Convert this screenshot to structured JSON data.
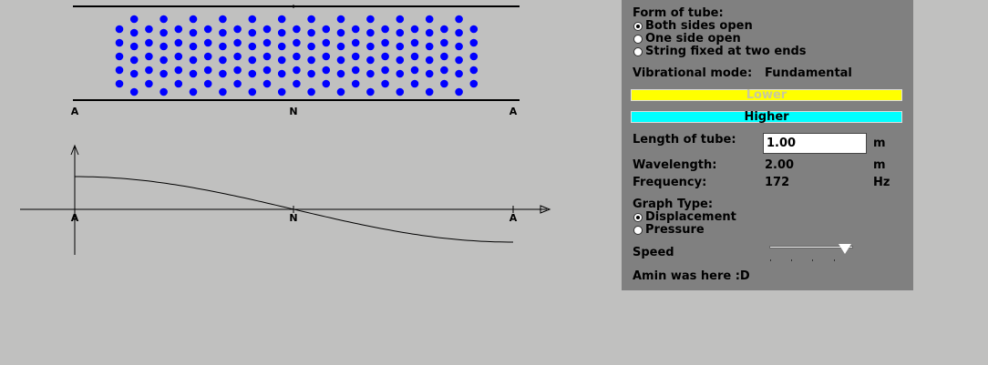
{
  "tube": {
    "node_labels": [
      "A",
      "N",
      "A"
    ],
    "particle_color": "#0000ff"
  },
  "graph": {
    "node_labels": [
      "A",
      "N",
      "A"
    ]
  },
  "panel": {
    "form_title": "Form of tube:",
    "form_options": [
      {
        "label": "Both sides open",
        "selected": true
      },
      {
        "label": "One side open",
        "selected": false
      },
      {
        "label": "String fixed at two ends",
        "selected": false
      }
    ],
    "mode_label": "Vibrational mode:",
    "mode_value": "Fundamental",
    "lower_button": "Lower",
    "lower_color": "#ffff00",
    "higher_button": "Higher",
    "higher_color": "#00ffff",
    "length_label": "Length of tube:",
    "length_value": "1.00",
    "length_unit": "m",
    "wavelength_label": "Wavelength:",
    "wavelength_value": "2.00",
    "wavelength_unit": "m",
    "frequency_label": "Frequency:",
    "frequency_value": "172",
    "frequency_unit": "Hz",
    "graph_type_title": "Graph Type:",
    "graph_options": [
      {
        "label": "Displacement",
        "selected": true
      },
      {
        "label": "Pressure",
        "selected": false
      }
    ],
    "speed_label": "Speed",
    "speed_level": 0.9,
    "footer_text": "Amin was here :D"
  }
}
